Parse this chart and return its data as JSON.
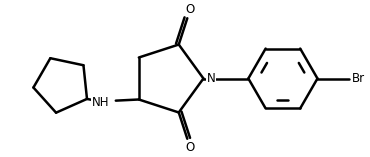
{
  "background_color": "#ffffff",
  "line_color": "#000000",
  "line_width": 1.8,
  "font_size": 8.5,
  "figsize": [
    3.7,
    1.57
  ],
  "dpi": 100,
  "xlim": [
    -2.6,
    3.8
  ],
  "ylim": [
    -1.15,
    1.15
  ]
}
